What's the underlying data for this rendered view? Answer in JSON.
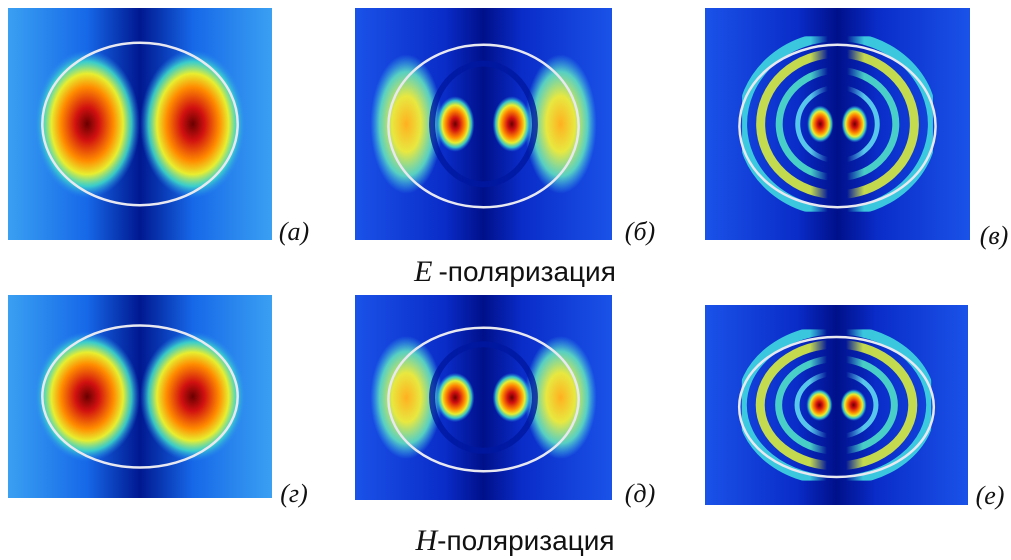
{
  "panels": [
    {
      "label": "(а)"
    },
    {
      "label": "(б)"
    },
    {
      "label": "(в)"
    },
    {
      "label": "(г)"
    },
    {
      "label": "(д)"
    },
    {
      "label": "(е)"
    }
  ],
  "captions": [
    {
      "symbol": "E",
      "text": "-поляризация"
    },
    {
      "symbol": "H",
      "text": "-поляризация"
    }
  ]
}
